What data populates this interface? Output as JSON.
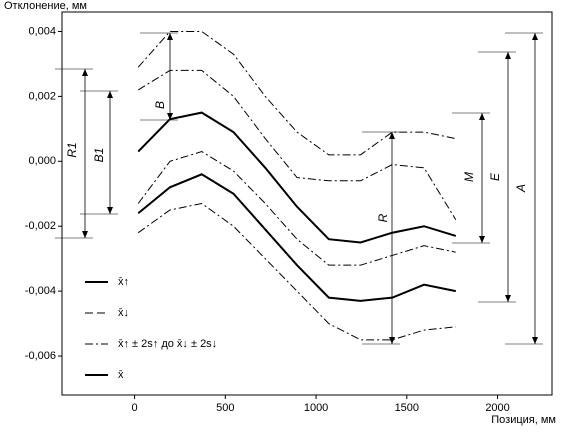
{
  "chart_data": {
    "type": "line",
    "y_label": "Отклонение, мм",
    "x_label": "Позиция, мм",
    "xlim": [
      -400,
      2300
    ],
    "xticks": [
      0,
      500,
      1000,
      1500,
      2000
    ],
    "ylim": [
      -0.0072,
      0.0046
    ],
    "yticks": [
      {
        "value": 0.004,
        "label": "0,004"
      },
      {
        "value": 0.002,
        "label": "0,002"
      },
      {
        "value": 0,
        "label": "0,000"
      },
      {
        "value": -0.002,
        "label": "-0,002"
      },
      {
        "value": -0.004,
        "label": "-0,004"
      },
      {
        "value": -0.006,
        "label": "-0,006"
      }
    ],
    "x": [
      20,
      195,
      370,
      545,
      720,
      895,
      1070,
      1245,
      1420,
      1595,
      1770
    ],
    "series": [
      {
        "style": "solid",
        "color": "#000000",
        "values": [
          0.0003,
          0.0013,
          0.0015,
          0.0009,
          -0.0002,
          -0.0014,
          -0.0024,
          -0.0025,
          -0.0022,
          -0.002,
          -0.0023
        ]
      },
      {
        "style": "dashdot",
        "color": "#000000",
        "values": [
          0.0029,
          0.004,
          0.004,
          0.0033,
          0.002,
          0.0009,
          0.0002,
          0.0002,
          0.0009,
          0.0009,
          0.0007
        ]
      },
      {
        "style": "dashdot",
        "color": "#000000",
        "values": [
          0.0022,
          0.0028,
          0.0028,
          0.002,
          0.0007,
          -0.0005,
          -0.0006,
          -0.0006,
          -0.0001,
          -0.0002,
          -0.0018
        ]
      },
      {
        "style": "solid",
        "color": "#000000",
        "values": [
          -0.0016,
          -0.0008,
          -0.0004,
          -0.001,
          -0.0021,
          -0.0032,
          -0.0042,
          -0.0043,
          -0.0042,
          -0.0038,
          -0.004
        ]
      },
      {
        "style": "dashdot",
        "color": "#000000",
        "values": [
          -0.0013,
          0.0,
          0.0003,
          -0.0003,
          -0.0013,
          -0.0024,
          -0.0032,
          -0.0032,
          -0.0029,
          -0.0026,
          -0.0028
        ]
      },
      {
        "style": "dashdot",
        "color": "#000000",
        "values": [
          -0.0022,
          -0.0015,
          -0.0013,
          -0.002,
          -0.003,
          -0.004,
          -0.005,
          -0.0055,
          -0.0055,
          -0.0052,
          -0.0051
        ]
      }
    ],
    "legend": [
      {
        "label": "x̄↑",
        "style": "solid"
      },
      {
        "label": "x̄↓",
        "style": "dashed"
      },
      {
        "label": "x̄↑ ± 2s↑ до x̄↓ ± 2s↓",
        "style": "dashdot"
      },
      {
        "label": "x̄",
        "style": "solid"
      }
    ],
    "annotations": [
      "R1",
      "B1",
      "B",
      "M",
      "E",
      "A",
      "R"
    ]
  }
}
